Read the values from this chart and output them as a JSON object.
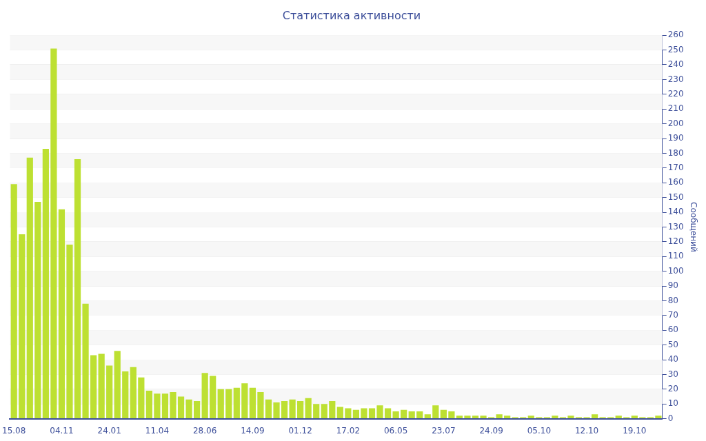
{
  "chart_data": {
    "type": "bar",
    "title": "Статистика активности",
    "ylabel": "Сообщений",
    "categories": [
      "15.08",
      null,
      null,
      null,
      null,
      null,
      "04.11",
      null,
      null,
      null,
      null,
      null,
      "24.01",
      null,
      null,
      null,
      null,
      null,
      "11.04",
      null,
      null,
      null,
      null,
      null,
      "28.06",
      null,
      null,
      null,
      null,
      null,
      "14.09",
      null,
      null,
      null,
      null,
      null,
      "01.12",
      null,
      null,
      null,
      null,
      null,
      "17.02",
      null,
      null,
      null,
      null,
      null,
      "06.05",
      null,
      null,
      null,
      null,
      null,
      "23.07",
      null,
      null,
      null,
      null,
      null,
      "24.09",
      null,
      null,
      null,
      null,
      null,
      "05.10",
      null,
      null,
      null,
      null,
      null,
      "12.10",
      null,
      null,
      null,
      null,
      null,
      "19.10",
      null,
      null,
      null
    ],
    "values": [
      159,
      125,
      177,
      147,
      183,
      251,
      142,
      118,
      176,
      78,
      43,
      44,
      36,
      46,
      32,
      35,
      28,
      19,
      17,
      17,
      18,
      15,
      13,
      12,
      31,
      29,
      20,
      20,
      21,
      24,
      21,
      18,
      13,
      11,
      12,
      13,
      12,
      14,
      10,
      10,
      12,
      8,
      7,
      6,
      7,
      7,
      9,
      7,
      5,
      6,
      5,
      5,
      3,
      9,
      6,
      5,
      2,
      2,
      2,
      2,
      1,
      3,
      2,
      1,
      1,
      2,
      1,
      1,
      2,
      1,
      2,
      1,
      1,
      3,
      1,
      1,
      2,
      1,
      2,
      1,
      1,
      2
    ],
    "color": "#bde032",
    "ylim": [
      0,
      260
    ],
    "yticks": [
      0,
      10,
      20,
      30,
      40,
      50,
      60,
      70,
      80,
      90,
      100,
      110,
      120,
      130,
      140,
      150,
      160,
      170,
      180,
      190,
      200,
      210,
      220,
      230,
      240,
      250,
      260
    ],
    "grid": "y",
    "legend": false
  }
}
